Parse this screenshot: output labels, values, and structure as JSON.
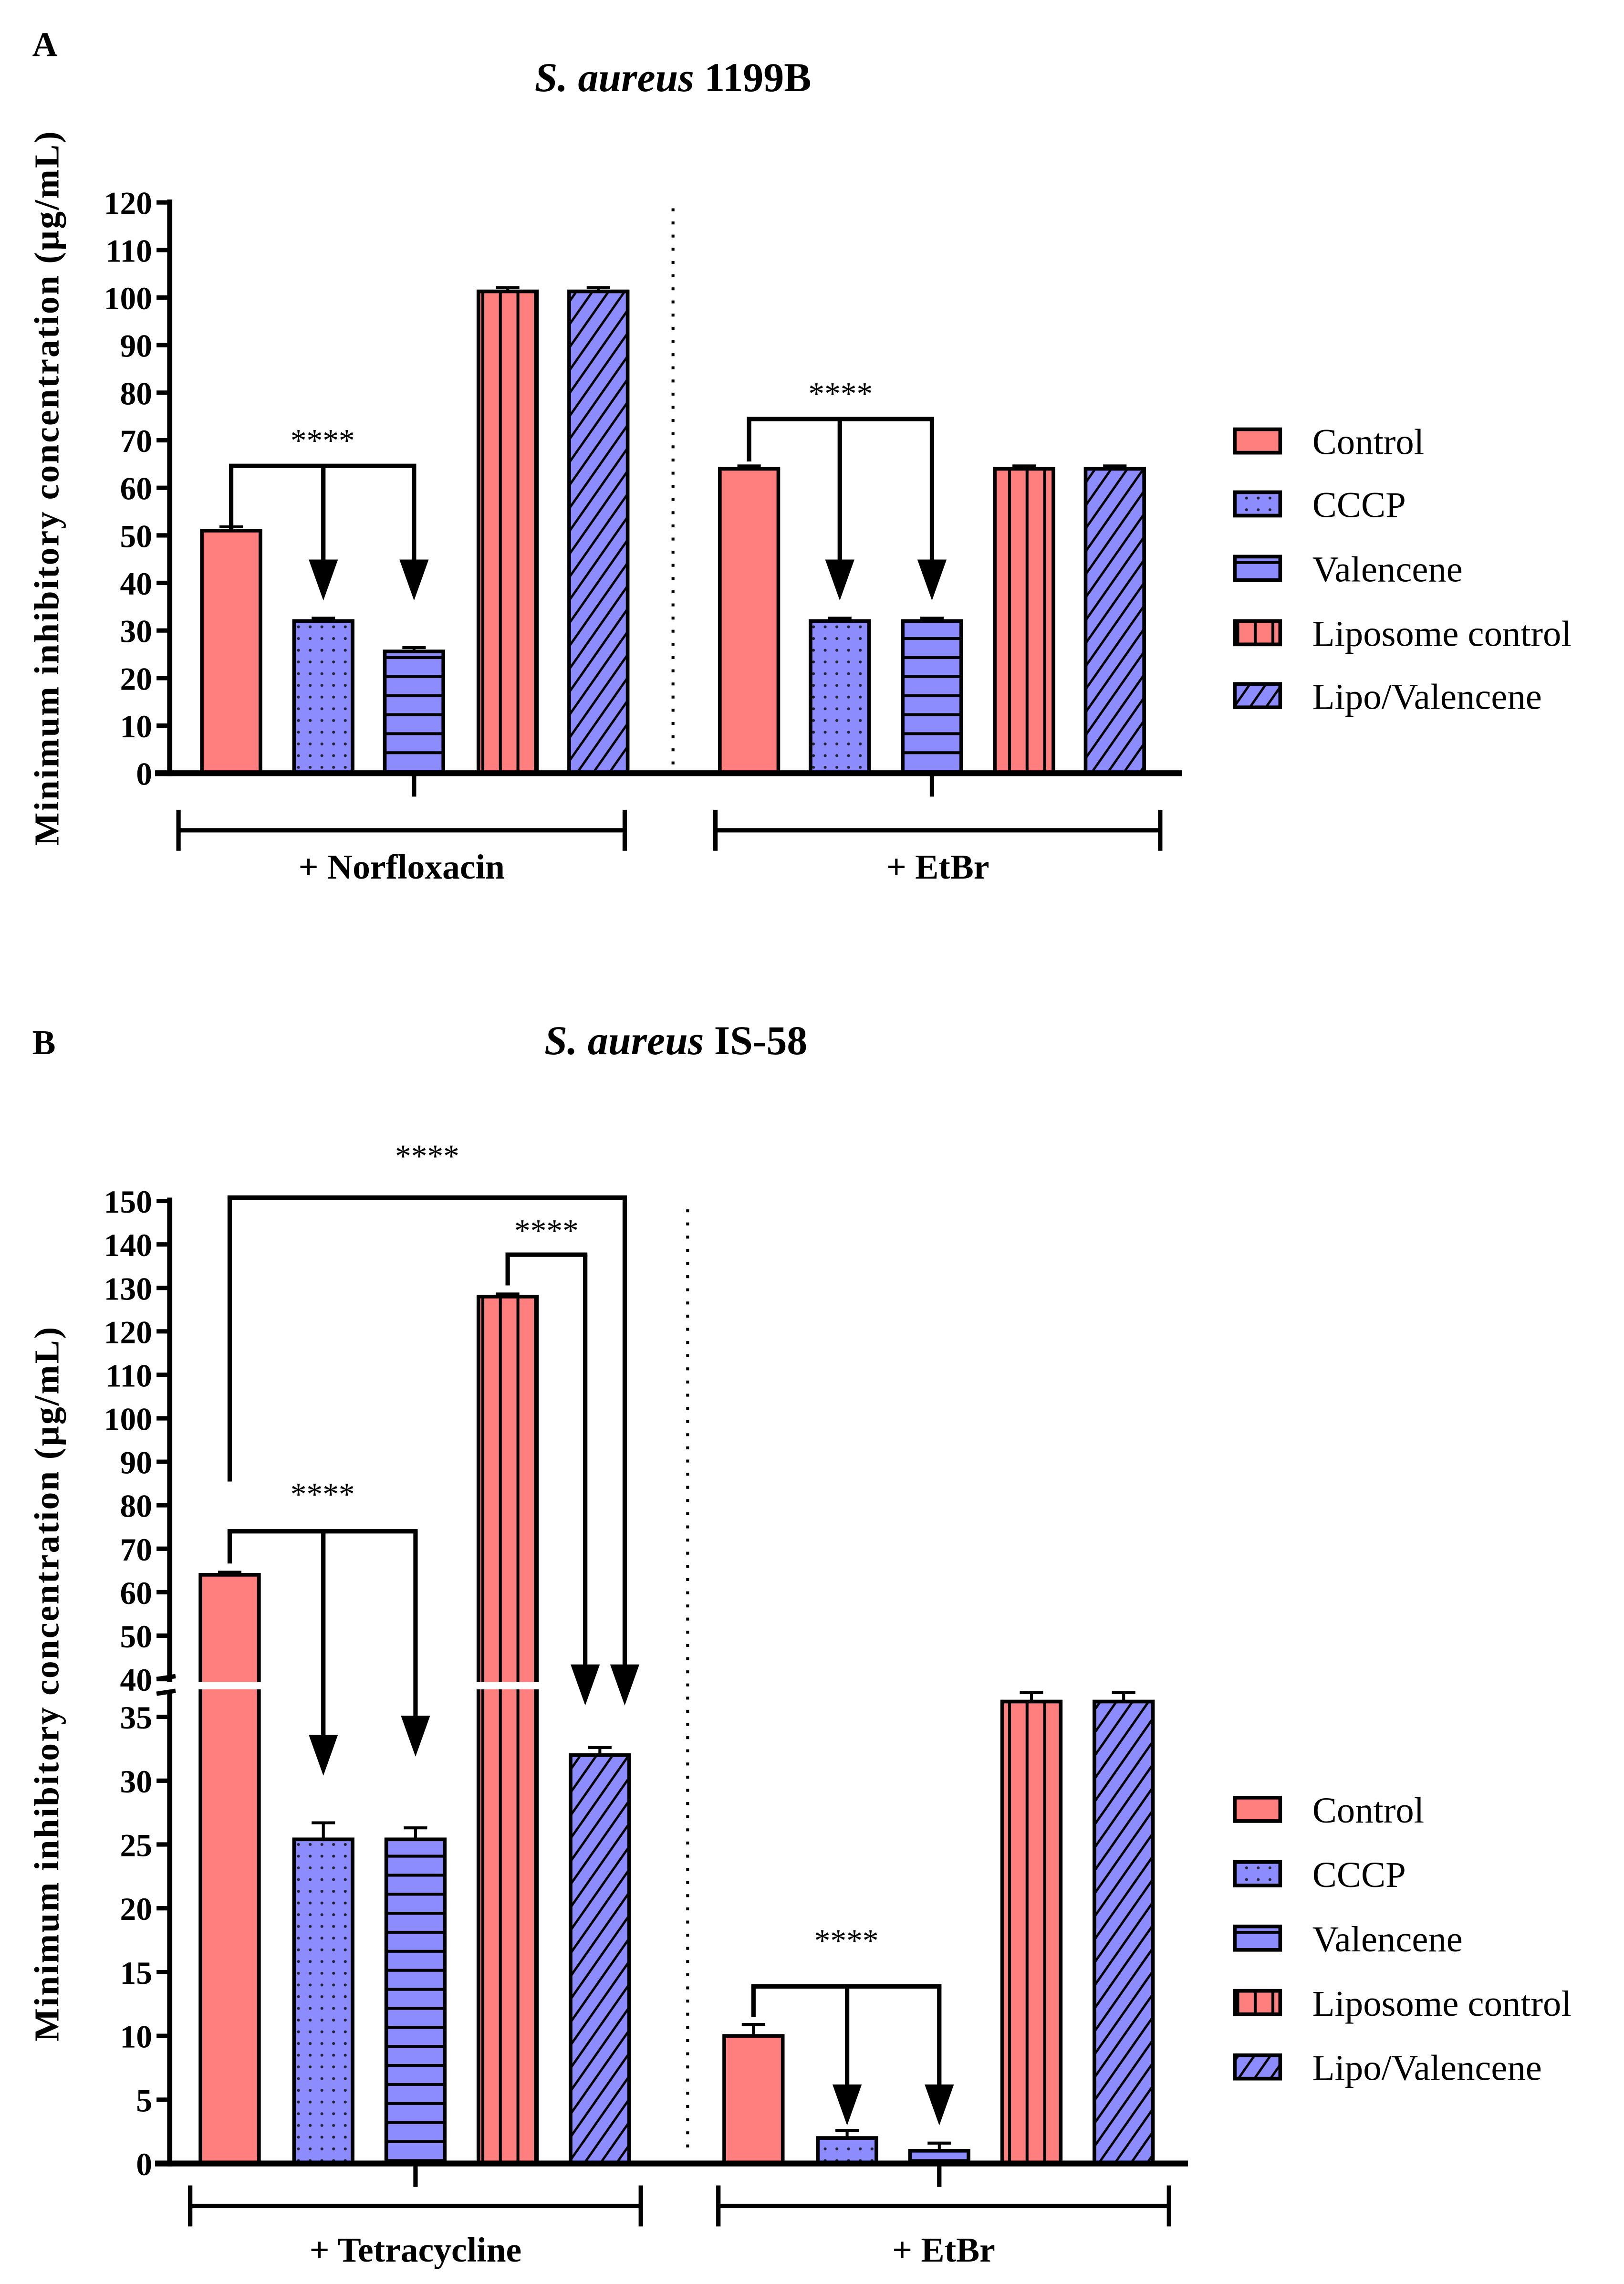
{
  "colors": {
    "red": "#FF7F7F",
    "blue": "#8C8CFF"
  },
  "series": [
    "Control",
    "CCCP",
    "Valencene",
    "Liposome control",
    "Lipo/Valencene"
  ],
  "series_patterns": [
    "solid",
    "dots",
    "horizontal-lines",
    "vertical-lines",
    "diagonal-lines"
  ],
  "chart_data": [
    {
      "type": "bar",
      "panel_label": "A",
      "title_italic": "S. aureus",
      "title_rest": "1199B",
      "ylabel": "Minimum inhibitory concentration (µg/mL)",
      "ylim": [
        0,
        120
      ],
      "yticks": [
        "0",
        "10",
        "20",
        "30",
        "40",
        "50",
        "60",
        "70",
        "80",
        "90",
        "100",
        "110",
        "120"
      ],
      "legend": "right",
      "groups": [
        {
          "name": "+ Norfloxacin",
          "values": [
            51,
            32,
            25.6,
            101.3,
            101.3
          ],
          "errors": [
            0.8,
            0.6,
            0.8,
            0.8,
            0.8
          ]
        },
        {
          "name": "+ EtBr",
          "values": [
            64,
            32,
            32,
            64,
            64
          ],
          "errors": [
            0.6,
            0.6,
            0.6,
            0.6,
            0.6
          ]
        }
      ],
      "significance": [
        {
          "group": 0,
          "from": 0,
          "to": [
            1,
            2
          ],
          "label": "****"
        },
        {
          "group": 1,
          "from": 0,
          "to": [
            1,
            2
          ],
          "label": "****"
        }
      ]
    },
    {
      "type": "bar",
      "panel_label": "B",
      "title_italic": "S. aureus",
      "title_rest": "IS-58",
      "ylabel": "Minimum inhibitory concentration (µg/mL)",
      "ylim": [
        0,
        150
      ],
      "axis_break": [
        37.5,
        40
      ],
      "yticks": [
        "0",
        "5",
        "10",
        "15",
        "20",
        "25",
        "30",
        "35",
        "40",
        "50",
        "60",
        "70",
        "80",
        "90",
        "100",
        "110",
        "120",
        "130",
        "140",
        "150"
      ],
      "legend": "right",
      "groups": [
        {
          "name": "+ Tetracycline",
          "values": [
            64,
            25.4,
            25.4,
            128,
            32
          ],
          "errors": [
            0.6,
            1.3,
            0.9,
            0.6,
            0.6
          ]
        },
        {
          "name": "+ EtBr",
          "values": [
            10,
            2,
            1,
            36.2,
            36.2
          ],
          "errors": [
            0.9,
            0.6,
            0.6,
            0.7,
            0.7
          ]
        }
      ],
      "significance": [
        {
          "group": 0,
          "from": 0,
          "to": [
            4
          ],
          "label": "****"
        },
        {
          "group": 0,
          "from": 3,
          "to": [
            4
          ],
          "label": "****"
        },
        {
          "group": 0,
          "from": 0,
          "to": [
            1,
            2
          ],
          "label": "****"
        },
        {
          "group": 1,
          "from": 0,
          "to": [
            1,
            2
          ],
          "label": "****"
        }
      ]
    }
  ]
}
